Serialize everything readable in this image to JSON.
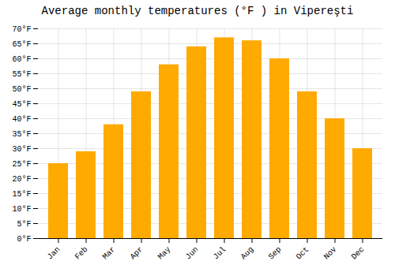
{
  "chart_data": {
    "type": "bar",
    "title": "Average monthly temperatures (°F ) in Vipereşti",
    "categories": [
      "Jan",
      "Feb",
      "Mar",
      "Apr",
      "May",
      "Jun",
      "Jul",
      "Aug",
      "Sep",
      "Oct",
      "Nov",
      "Dec"
    ],
    "values": [
      25,
      29,
      38,
      49,
      58,
      64,
      67,
      66,
      60,
      49,
      40,
      30
    ],
    "color": "#FFAA00",
    "ylim": [
      0,
      70
    ],
    "yticks": [
      {
        "value": 0,
        "label": "0°F"
      },
      {
        "value": 5,
        "label": "5°F"
      },
      {
        "value": 10,
        "label": "10°F"
      },
      {
        "value": 15,
        "label": "15°F"
      },
      {
        "value": 20,
        "label": "20°F"
      },
      {
        "value": 25,
        "label": "25°F"
      },
      {
        "value": 30,
        "label": "30°F"
      },
      {
        "value": 35,
        "label": "35°F"
      },
      {
        "value": 40,
        "label": "40°F"
      },
      {
        "value": 45,
        "label": "45°F"
      },
      {
        "value": 50,
        "label": "50°F"
      },
      {
        "value": 55,
        "label": "55°F"
      },
      {
        "value": 60,
        "label": "60°F"
      },
      {
        "value": 65,
        "label": "65°F"
      },
      {
        "value": 70,
        "label": "70°F"
      }
    ],
    "grid": true
  }
}
